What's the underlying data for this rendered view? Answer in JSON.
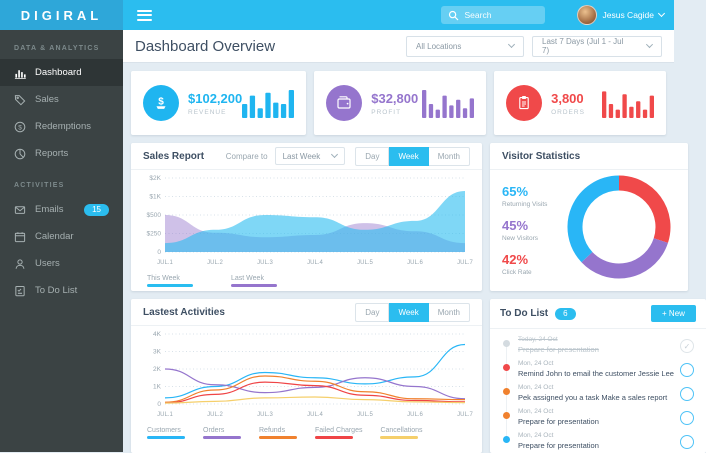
{
  "topbar": {
    "logo": "DIGIRAL",
    "search_placeholder": "Search",
    "user_name": "Jesus Cagide"
  },
  "sidebar": {
    "sections": [
      {
        "label": "DATA & ANALYTICS",
        "items": [
          {
            "label": "Dashboard",
            "icon": "bar-chart",
            "active": true
          },
          {
            "label": "Sales",
            "icon": "tag"
          },
          {
            "label": "Redemptions",
            "icon": "dollar-circle"
          },
          {
            "label": "Reports",
            "icon": "pie-chart"
          }
        ]
      },
      {
        "label": "ACTIVITIES",
        "items": [
          {
            "label": "Emails",
            "icon": "envelope",
            "badge": "15"
          },
          {
            "label": "Calendar",
            "icon": "calendar"
          },
          {
            "label": "Users",
            "icon": "user"
          },
          {
            "label": "To Do List",
            "icon": "checklist"
          }
        ]
      }
    ]
  },
  "header": {
    "title": "Dashboard Overview",
    "location_filter": "All Locations",
    "date_filter": "Last 7 Days (Jul 1 - Jul 7)"
  },
  "stats": [
    {
      "value": "$102,200",
      "label": "REVENUE",
      "color": "#1fb5f0",
      "icon": "money",
      "bars": [
        0.5,
        0.8,
        0.35,
        0.9,
        0.55,
        0.5,
        1.0
      ]
    },
    {
      "value": "$32,800",
      "label": "PROFIT",
      "color": "#9575cd",
      "icon": "wallet",
      "bars": [
        1.0,
        0.5,
        0.3,
        0.8,
        0.45,
        0.65,
        0.35,
        0.7
      ]
    },
    {
      "value": "3,800",
      "label": "ORDERS",
      "color": "#f0494a",
      "icon": "clipboard",
      "bars": [
        0.95,
        0.5,
        0.3,
        0.85,
        0.4,
        0.6,
        0.3,
        0.8
      ]
    }
  ],
  "sales_report": {
    "title": "Sales Report",
    "compare_label": "Compare to",
    "compare_value": "Last Week",
    "tabs": [
      "Day",
      "Week",
      "Month"
    ],
    "active_tab": "Week",
    "chart": {
      "type": "area",
      "x_labels": [
        "JUL.1",
        "JUL.2",
        "JUL.3",
        "JUL.4",
        "JUL.5",
        "JUL.6",
        "JUL.7"
      ],
      "y_ticks": [
        {
          "v": 0,
          "label": "0"
        },
        {
          "v": 250,
          "label": "$250"
        },
        {
          "v": 500,
          "label": "$500"
        },
        {
          "v": 1000,
          "label": "$1K"
        },
        {
          "v": 2000,
          "label": "$2K"
        }
      ],
      "series": [
        {
          "name": "Last Week",
          "color": "#9575cd",
          "values": [
            500,
            260,
            200,
            230,
            390,
            280,
            120
          ]
        },
        {
          "name": "This Week",
          "color": "#29bdf0",
          "values": [
            120,
            300,
            500,
            470,
            300,
            420,
            1300
          ]
        }
      ]
    }
  },
  "visitor_stats": {
    "title": "Visitor Statistics",
    "metrics": [
      {
        "value": "65%",
        "label": "Returning Visits",
        "color": "#29b6f6"
      },
      {
        "value": "45%",
        "label": "New Visitors",
        "color": "#9575cd"
      },
      {
        "value": "42%",
        "label": "Click Rate",
        "color": "#f0494a"
      }
    ],
    "donut": {
      "segments": [
        {
          "name": "Click Rate",
          "pct": 30,
          "color": "#f0494a"
        },
        {
          "name": "New Visitors",
          "pct": 33,
          "color": "#9575cd"
        },
        {
          "name": "Returning Visits",
          "pct": 37,
          "color": "#29b6f6"
        }
      ]
    }
  },
  "activities": {
    "title": "Lastest Activities",
    "tabs": [
      "Day",
      "Week",
      "Month"
    ],
    "active_tab": "Week",
    "chart": {
      "type": "line",
      "x_labels": [
        "JUL.1",
        "JUL.2",
        "JUL.3",
        "JUL.4",
        "JUL.5",
        "JUL.6",
        "JUL.7"
      ],
      "y_ticks": [
        {
          "v": 0,
          "label": "0"
        },
        {
          "v": 1000,
          "label": "1K"
        },
        {
          "v": 2000,
          "label": "2K"
        },
        {
          "v": 3000,
          "label": "3K"
        },
        {
          "v": 4000,
          "label": "4K"
        }
      ],
      "series": [
        {
          "name": "Customers",
          "color": "#29b6f6",
          "values": [
            350,
            1000,
            1800,
            1500,
            1150,
            1550,
            3400
          ]
        },
        {
          "name": "Orders",
          "color": "#9575cd",
          "values": [
            2000,
            1100,
            650,
            950,
            1500,
            1000,
            300
          ]
        },
        {
          "name": "Refunds",
          "color": "#f0812e",
          "values": [
            100,
            800,
            1600,
            1300,
            700,
            300,
            250
          ]
        },
        {
          "name": "Failed Charges",
          "color": "#ef4446",
          "values": [
            60,
            550,
            1250,
            1050,
            500,
            200,
            120
          ]
        },
        {
          "name": "Cancellations",
          "color": "#f5cf6b",
          "values": [
            50,
            150,
            350,
            400,
            250,
            120,
            80
          ]
        }
      ]
    }
  },
  "todo": {
    "title": "To Do List",
    "count": "6",
    "new_label": "+ New",
    "items": [
      {
        "date": "Today, 24 Oct",
        "text": "Prepare for presentation",
        "dot": "#d4dbe0",
        "done": true
      },
      {
        "date": "Mon, 24 Oct",
        "text": "Remind John to email the customer Jessie Lee",
        "dot": "#f0494a",
        "done": false
      },
      {
        "date": "Mon, 24 Oct",
        "text": "Pek assigned you a task Make a sales report",
        "dot": "#f0812e",
        "done": false
      },
      {
        "date": "Mon, 24 Oct",
        "text": "Prepare for presentation",
        "dot": "#f0812e",
        "done": false
      },
      {
        "date": "Mon, 24 Oct",
        "text": "Prepare for presentation",
        "dot": "#29b6f6",
        "done": false
      }
    ]
  }
}
